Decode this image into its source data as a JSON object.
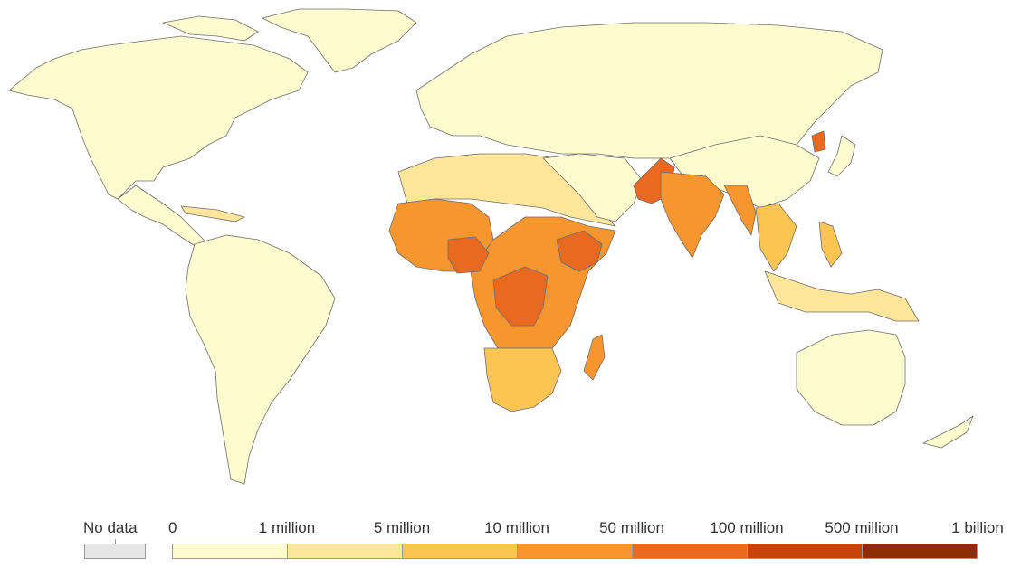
{
  "legend": {
    "no_data": {
      "label": "No data",
      "color": "#e6e6e6"
    },
    "ticks": [
      "0",
      "1 million",
      "5 million",
      "10 million",
      "50 million",
      "100 million",
      "500 million",
      "1 billion"
    ],
    "colors": [
      "#fefbcf",
      "#fde59a",
      "#fbc453",
      "#f7962f",
      "#e8691f",
      "#c6440b",
      "#8c2d04"
    ]
  },
  "map": {
    "land_default_color": "#fefbcf",
    "border_color": "#6e6e6e"
  }
}
